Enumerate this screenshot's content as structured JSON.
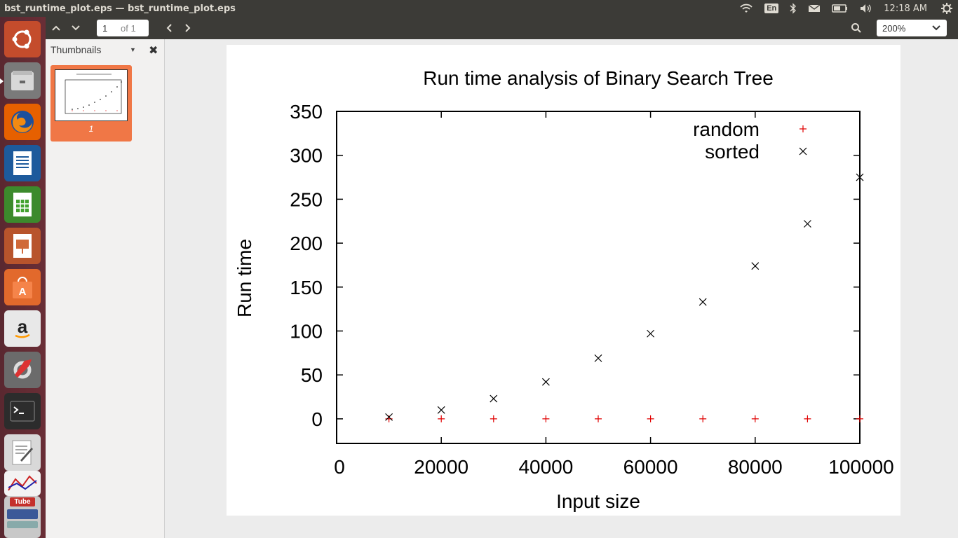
{
  "window": {
    "title": "bst_runtime_plot.eps — bst_runtime_plot.eps"
  },
  "panel": {
    "keyboard_layout": "En",
    "time": "12:18 AM"
  },
  "toolbar": {
    "page_current": "1",
    "page_total": "of 1",
    "zoom": "200%"
  },
  "sidebar": {
    "title": "Thumbnails",
    "thumbnail_label": "1"
  },
  "launcher": {
    "items": [
      "ubuntu-dash",
      "files",
      "firefox",
      "libreoffice-writer",
      "libreoffice-calc",
      "libreoffice-impress",
      "software-center",
      "amazon",
      "system-settings",
      "terminal",
      "text-editor",
      "youtube"
    ]
  },
  "colors": {
    "random_series": "#e00000",
    "sorted_series": "#000000",
    "accent": "#f07746"
  },
  "chart_data": {
    "type": "scatter",
    "title": "Run time analysis of Binary Search Tree",
    "xlabel": "Input size",
    "ylabel": "Run time",
    "xlim": [
      0,
      100000
    ],
    "ylim": [
      -28,
      350
    ],
    "xticks": [
      "0",
      "20000",
      "40000",
      "60000",
      "80000",
      "100000"
    ],
    "yticks": [
      "0",
      "50",
      "100",
      "150",
      "200",
      "250",
      "300",
      "350"
    ],
    "legend_position": "top-right",
    "series": [
      {
        "name": "random",
        "marker": "+",
        "x": [
          10000,
          20000,
          30000,
          40000,
          50000,
          60000,
          70000,
          80000,
          90000,
          100000
        ],
        "y": [
          0,
          0,
          0,
          0,
          0,
          0,
          0,
          0,
          0,
          0
        ]
      },
      {
        "name": "sorted",
        "marker": "x",
        "x": [
          10000,
          20000,
          30000,
          40000,
          50000,
          60000,
          70000,
          80000,
          90000,
          100000
        ],
        "y": [
          2,
          10,
          23,
          42,
          69,
          97,
          133,
          174,
          222,
          275
        ]
      }
    ]
  }
}
